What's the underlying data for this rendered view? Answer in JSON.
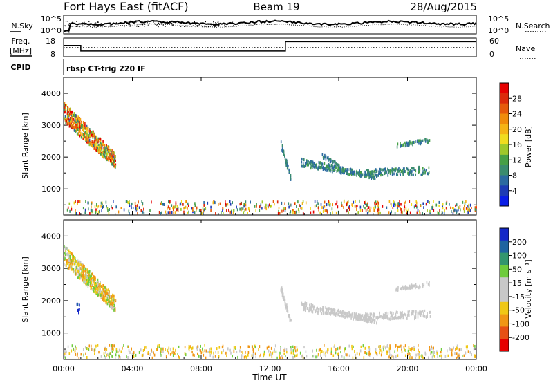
{
  "header": {
    "station": "Fort Hays East (fitACF)",
    "beam": "Beam 19",
    "date": "28/Aug/2015"
  },
  "noise_panel": {
    "left_label": "N.Sky",
    "right_label": "N.Search",
    "left_ticks": [
      "10^5",
      "10^0"
    ],
    "right_ticks": [
      "10^5",
      "10^0"
    ]
  },
  "freq_panel": {
    "left_label_1": "Freq.",
    "left_label_2": "[MHz]",
    "left_ticks": [
      "18",
      "8"
    ],
    "right_label": "Nave",
    "right_ticks": [
      "60",
      "0"
    ],
    "cpid_label": "CPID",
    "cpid_text": "rbsp CT-trig 220 IF"
  },
  "axes": {
    "xlabel": "Time UT",
    "x_ticks": [
      "00:00",
      "04:00",
      "08:00",
      "12:00",
      "16:00",
      "20:00",
      "00:00"
    ],
    "ylabel": "Slant Range [km]",
    "y_ticks": [
      "1000",
      "2000",
      "3000",
      "4000"
    ]
  },
  "power_colorbar": {
    "label": "Power [dB]",
    "ticks": [
      "4",
      "8",
      "12",
      "16",
      "20",
      "24",
      "28"
    ],
    "colors": [
      "#0a1ee6",
      "#1e3cb4",
      "#2c6aa0",
      "#3a8c6e",
      "#46a046",
      "#9ec82a",
      "#f0dc1e",
      "#f5b414",
      "#f08c0a",
      "#e65a0a",
      "#dc2a0a",
      "#e60000"
    ]
  },
  "velocity_colorbar": {
    "label": "Velocity [m s⁻¹]",
    "ticks": [
      "200",
      "100",
      "50",
      "15",
      "-15",
      "-50",
      "-100",
      "-200"
    ],
    "colors": [
      "#1428c8",
      "#1e64a0",
      "#32966e",
      "#6ecc3c",
      "#c8c8c8",
      "#c8c8c8",
      "#f0c814",
      "#f09614",
      "#e65014",
      "#e60000"
    ]
  },
  "chart_data": [
    {
      "type": "line",
      "name": "noise",
      "x_range_hours": [
        0,
        24
      ],
      "y_scale": "log",
      "series": [
        {
          "name": "N.Sky",
          "style": "solid"
        },
        {
          "name": "N.Search",
          "style": "dotted"
        }
      ]
    },
    {
      "type": "line",
      "name": "frequency-nave",
      "x_range_hours": [
        0,
        24
      ],
      "series": [
        {
          "name": "Freq.",
          "units": "MHz",
          "ylim": [
            8,
            18
          ],
          "style": "solid",
          "points": [
            [
              0,
              14
            ],
            [
              1.0,
              14
            ],
            [
              1.0,
              11
            ],
            [
              12.9,
              11
            ],
            [
              12.9,
              16
            ],
            [
              24,
              16
            ]
          ]
        },
        {
          "name": "Nave",
          "ylim": [
            0,
            60
          ],
          "style": "dotted",
          "points": [
            [
              0,
              29
            ],
            [
              24,
              29
            ]
          ]
        }
      ]
    },
    {
      "type": "heatmap",
      "name": "power",
      "xlabel": "Time UT",
      "ylabel": "Slant Range [km]",
      "x_range_hours": [
        0,
        24
      ],
      "ylim": [
        180,
        4500
      ],
      "value_units": "dB",
      "value_range": [
        0,
        30
      ],
      "regions": [
        {
          "t": [
            0.0,
            3.0
          ],
          "r0": [
            3700,
            2100
          ],
          "r1": [
            3100,
            1650
          ],
          "v": [
            6,
            30
          ],
          "n": 520
        },
        {
          "t": [
            12.6,
            13.2
          ],
          "r0": [
            2550,
            1400
          ],
          "r1": [
            2300,
            1250
          ],
          "v": [
            5,
            10
          ],
          "n": 45
        },
        {
          "t": [
            13.8,
            18.2
          ],
          "r0": [
            1950,
            1450
          ],
          "r1": [
            1700,
            1300
          ],
          "v": [
            5,
            11
          ],
          "n": 260
        },
        {
          "t": [
            15.0,
            16.0
          ],
          "r0": [
            2100,
            1800
          ],
          "r1": [
            1950,
            1700
          ],
          "v": [
            5,
            10
          ],
          "n": 40
        },
        {
          "t": [
            17.5,
            21.3
          ],
          "r0": [
            1600,
            1700
          ],
          "r1": [
            1400,
            1450
          ],
          "v": [
            5,
            12
          ],
          "n": 160
        },
        {
          "t": [
            19.3,
            21.3
          ],
          "r0": [
            2400,
            2600
          ],
          "r1": [
            2300,
            2450
          ],
          "v": [
            5,
            12
          ],
          "n": 60
        },
        {
          "t": [
            0.0,
            24.0
          ],
          "r0": [
            620,
            620
          ],
          "r1": [
            220,
            220
          ],
          "v": [
            2,
            30
          ],
          "n": 520
        }
      ]
    },
    {
      "type": "heatmap",
      "name": "velocity",
      "xlabel": "Time UT",
      "ylabel": "Slant Range [km]",
      "x_range_hours": [
        0,
        24
      ],
      "ylim": [
        180,
        4500
      ],
      "value_units": "m s-1",
      "value_range": [
        -250,
        250
      ],
      "regions": [
        {
          "t": [
            0.0,
            3.0
          ],
          "r0": [
            3700,
            2100
          ],
          "r1": [
            3100,
            1650
          ],
          "v": [
            -80,
            40
          ],
          "n": 520
        },
        {
          "t": [
            0.7,
            0.9
          ],
          "r0": [
            1900,
            1900
          ],
          "r1": [
            1600,
            1600
          ],
          "v": [
            180,
            240
          ],
          "n": 10
        },
        {
          "t": [
            12.6,
            13.2
          ],
          "r0": [
            2550,
            1400
          ],
          "r1": [
            2300,
            1250
          ],
          "v": [
            -10,
            10
          ],
          "n": 45
        },
        {
          "t": [
            13.8,
            18.2
          ],
          "r0": [
            1950,
            1450
          ],
          "r1": [
            1700,
            1300
          ],
          "v": [
            -12,
            12
          ],
          "n": 260
        },
        {
          "t": [
            17.5,
            21.3
          ],
          "r0": [
            1600,
            1700
          ],
          "r1": [
            1400,
            1450
          ],
          "v": [
            -12,
            12
          ],
          "n": 160
        },
        {
          "t": [
            19.3,
            21.3
          ],
          "r0": [
            2400,
            2600
          ],
          "r1": [
            2300,
            2450
          ],
          "v": [
            -14,
            14
          ],
          "n": 60
        },
        {
          "t": [
            0.0,
            24.0
          ],
          "r0": [
            620,
            620
          ],
          "r1": [
            220,
            220
          ],
          "v": [
            -90,
            30
          ],
          "n": 520
        }
      ]
    }
  ]
}
